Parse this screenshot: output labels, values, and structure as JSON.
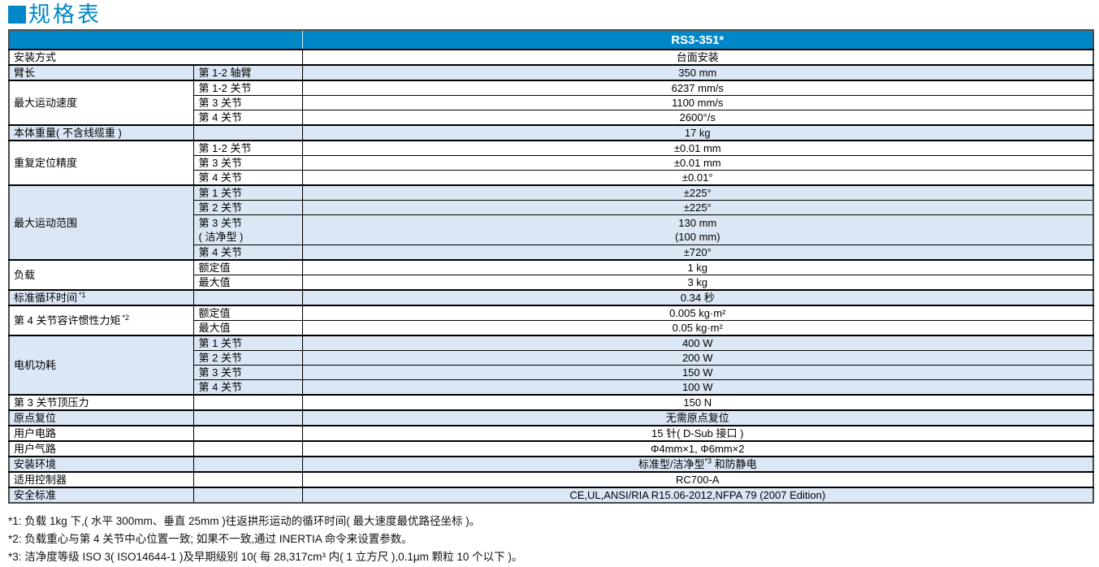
{
  "title": {
    "text": "规格表"
  },
  "colors": {
    "accent": "#0087C8",
    "row_shade": "#DCE7F6",
    "header_text": "#FFFFFF",
    "border": "#000000"
  },
  "table": {
    "model_header": "RS3-351*",
    "groups": [
      {
        "label": "安装方式",
        "shade": "white",
        "rows": [
          {
            "value": "台面安装"
          }
        ]
      },
      {
        "label": "臂长",
        "shade": "blue",
        "rows": [
          {
            "sub": "第 1-2 轴臂",
            "value": "350 mm"
          }
        ]
      },
      {
        "label": "最大运动速度",
        "shade": "white",
        "rows": [
          {
            "sub": "第 1-2 关节",
            "value": "6237 mm/s"
          },
          {
            "sub": "第 3 关节",
            "value": "1100 mm/s"
          },
          {
            "sub": "第 4 关节",
            "value": "2600°/s"
          }
        ]
      },
      {
        "label": "本体重量( 不含线缆重 )",
        "shade": "blue",
        "rows": [
          {
            "sub": "",
            "value": "17 kg"
          }
        ]
      },
      {
        "label": "重复定位精度",
        "shade": "white",
        "rows": [
          {
            "sub": "第 1-2 关节",
            "value": "±0.01 mm"
          },
          {
            "sub": "第 3 关节",
            "value": "±0.01 mm"
          },
          {
            "sub": "第 4 关节",
            "value": "±0.01°"
          }
        ]
      },
      {
        "label": "最大运动范围",
        "shade": "blue",
        "rows": [
          {
            "sub": "第 1 关节",
            "value": "±225°"
          },
          {
            "sub": "第 2 关节",
            "value": "±225°"
          },
          {
            "sub": "第 3 关节",
            "sub2": "( 洁净型 )",
            "value": "130 mm",
            "value2": "(100 mm)"
          },
          {
            "sub": "第 4 关节",
            "value": "±720°"
          }
        ]
      },
      {
        "label": "负载",
        "shade": "white",
        "rows": [
          {
            "sub": "额定值",
            "value": "1 kg"
          },
          {
            "sub": "最大值",
            "value": "3 kg"
          }
        ]
      },
      {
        "label": "标准循环时间",
        "label_note": "*1",
        "shade": "blue",
        "rows": [
          {
            "sub": "",
            "value": "0.34 秒"
          }
        ]
      },
      {
        "label": "第 4 关节容许惯性力矩",
        "label_note": "*2",
        "shade": "white",
        "rows": [
          {
            "sub": "额定值",
            "value": "0.005 kg·m²"
          },
          {
            "sub": "最大值",
            "value": "0.05 kg·m²"
          }
        ]
      },
      {
        "label": "电机功耗",
        "shade": "blue",
        "rows": [
          {
            "sub": "第 1 关节",
            "value": "400 W"
          },
          {
            "sub": "第 2 关节",
            "value": "200 W"
          },
          {
            "sub": "第 3 关节",
            "value": "150 W"
          },
          {
            "sub": "第 4 关节",
            "value": "100 W"
          }
        ]
      },
      {
        "label": "第 3 关节顶压力",
        "shade": "white",
        "rows": [
          {
            "sub": "",
            "value": "150 N"
          }
        ]
      },
      {
        "label": "原点复位",
        "shade": "blue",
        "rows": [
          {
            "sub": "",
            "value": "无需原点复位"
          }
        ]
      },
      {
        "label": "用户电路",
        "shade": "white",
        "rows": [
          {
            "sub": "",
            "value": "15 针( D-Sub 接口 )"
          }
        ]
      },
      {
        "label": "用户气路",
        "shade": "white",
        "rows": [
          {
            "sub": "",
            "value": "Φ4mm×1, Φ6mm×2"
          }
        ]
      },
      {
        "label": "安装环境",
        "shade": "blue",
        "rows": [
          {
            "sub": "",
            "value": "标准型/洁净型",
            "value_note": "*3",
            "value_post": " 和防静电"
          }
        ]
      },
      {
        "label": "适用控制器",
        "shade": "white",
        "rows": [
          {
            "sub": "",
            "value": "RC700-A"
          }
        ]
      },
      {
        "label": "安全标准",
        "shade": "blue",
        "rows": [
          {
            "sub": "",
            "value": "CE,UL,ANSI/RIA R15.06-2012,NFPA 79 (2007 Edition)"
          }
        ]
      }
    ]
  },
  "footnotes": [
    "*1: 负载 1kg 下,( 水平 300mm、垂直 25mm )往返拱形运动的循环时间( 最大速度最优路径坐标 )。",
    "*2: 负载重心与第 4 关节中心位置一致; 如果不一致,通过 INERTIA 命令来设置参数。",
    "*3: 洁净度等级 ISO 3( ISO14644-1 )及早期级别 10( 每 28,317cm³ 内( 1 立方尺 ),0.1μm 颗粒 10 个以下 )。"
  ]
}
